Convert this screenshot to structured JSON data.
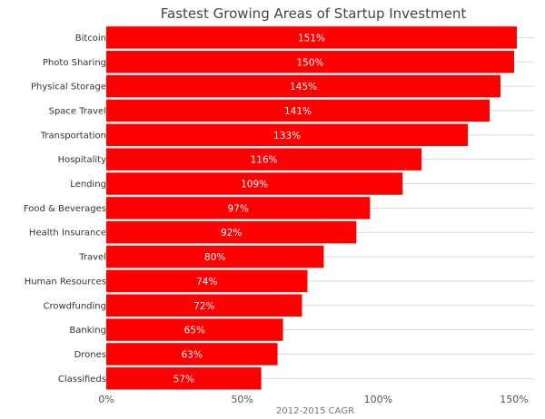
{
  "chart_data": {
    "type": "bar",
    "orientation": "horizontal",
    "title": "Fastest Growing Areas of Startup Investment",
    "xlabel": "2012-2015 CAGR",
    "ylabel": "",
    "categories": [
      "Bitcoin",
      "Photo Sharing",
      "Physical Storage",
      "Space Travel",
      "Transportation",
      "Hospitality",
      "Lending",
      "Food & Beverages",
      "Health Insurance",
      "Travel",
      "Human Resources",
      "Crowdfunding",
      "Banking",
      "Drones",
      "Classifieds"
    ],
    "values": [
      151,
      150,
      145,
      141,
      133,
      116,
      109,
      97,
      92,
      80,
      74,
      72,
      65,
      63,
      57
    ],
    "value_labels": [
      "151%",
      "150%",
      "145%",
      "141%",
      "133%",
      "116%",
      "109%",
      "97%",
      "92%",
      "80%",
      "74%",
      "72%",
      "65%",
      "63%",
      "57%"
    ],
    "xticks": [
      0,
      50,
      100,
      150
    ],
    "xtick_labels": [
      "0%",
      "50%",
      "100%",
      "150%"
    ],
    "xlim": [
      0,
      150
    ],
    "grid": "horizontal",
    "legend": "none",
    "colors": {
      "bar": "#fe0000",
      "grid": "#d9d9d9"
    }
  }
}
